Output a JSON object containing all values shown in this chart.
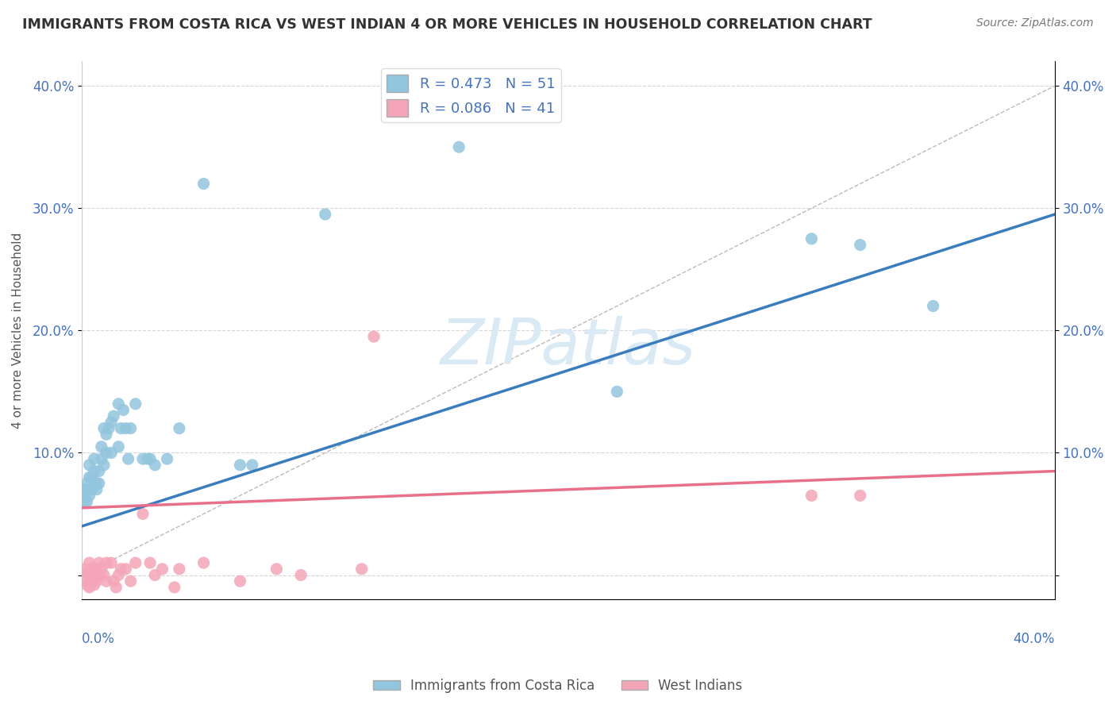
{
  "title": "IMMIGRANTS FROM COSTA RICA VS WEST INDIAN 4 OR MORE VEHICLES IN HOUSEHOLD CORRELATION CHART",
  "source": "Source: ZipAtlas.com",
  "ylabel": "4 or more Vehicles in Household",
  "xlim": [
    0,
    0.4
  ],
  "ylim": [
    -0.02,
    0.42
  ],
  "ytick_values": [
    0.0,
    0.1,
    0.2,
    0.3,
    0.4
  ],
  "ytick_labels_left": [
    "",
    "10.0%",
    "20.0%",
    "30.0%",
    "40.0%"
  ],
  "ytick_labels_right": [
    "",
    "10.0%",
    "20.0%",
    "30.0%",
    "40.0%"
  ],
  "blue_R": 0.473,
  "blue_N": 51,
  "pink_R": 0.086,
  "pink_N": 41,
  "blue_color": "#92c5de",
  "pink_color": "#f4a6b8",
  "blue_line_color": "#3a7dbf",
  "pink_line_color": "#e8708a",
  "legend_blue_label": "Immigrants from Costa Rica",
  "legend_pink_label": "West Indians",
  "blue_scatter_x": [
    0.001,
    0.001,
    0.001,
    0.002,
    0.002,
    0.002,
    0.003,
    0.003,
    0.003,
    0.004,
    0.004,
    0.005,
    0.005,
    0.005,
    0.006,
    0.006,
    0.007,
    0.007,
    0.008,
    0.008,
    0.009,
    0.009,
    0.01,
    0.01,
    0.011,
    0.012,
    0.012,
    0.013,
    0.015,
    0.015,
    0.016,
    0.017,
    0.018,
    0.019,
    0.02,
    0.022,
    0.025,
    0.027,
    0.028,
    0.03,
    0.035,
    0.04,
    0.05,
    0.065,
    0.07,
    0.1,
    0.155,
    0.22,
    0.3,
    0.32,
    0.35
  ],
  "blue_scatter_y": [
    0.06,
    0.065,
    0.07,
    0.06,
    0.07,
    0.075,
    0.065,
    0.08,
    0.09,
    0.07,
    0.08,
    0.075,
    0.085,
    0.095,
    0.07,
    0.075,
    0.075,
    0.085,
    0.095,
    0.105,
    0.09,
    0.12,
    0.1,
    0.115,
    0.12,
    0.1,
    0.125,
    0.13,
    0.14,
    0.105,
    0.12,
    0.135,
    0.12,
    0.095,
    0.12,
    0.14,
    0.095,
    0.095,
    0.095,
    0.09,
    0.095,
    0.12,
    0.32,
    0.09,
    0.09,
    0.295,
    0.35,
    0.15,
    0.275,
    0.27,
    0.22
  ],
  "pink_scatter_x": [
    0.001,
    0.001,
    0.002,
    0.002,
    0.003,
    0.003,
    0.003,
    0.004,
    0.004,
    0.005,
    0.005,
    0.006,
    0.006,
    0.007,
    0.007,
    0.008,
    0.009,
    0.01,
    0.01,
    0.012,
    0.013,
    0.014,
    0.015,
    0.016,
    0.018,
    0.02,
    0.022,
    0.025,
    0.028,
    0.03,
    0.033,
    0.038,
    0.04,
    0.05,
    0.065,
    0.08,
    0.09,
    0.115,
    0.12,
    0.3,
    0.32
  ],
  "pink_scatter_y": [
    -0.005,
    0.005,
    -0.008,
    0.002,
    -0.01,
    0.0,
    0.01,
    -0.005,
    0.005,
    -0.008,
    0.005,
    -0.005,
    0.005,
    0.0,
    0.01,
    0.005,
    0.0,
    -0.005,
    0.01,
    0.01,
    -0.005,
    -0.01,
    0.0,
    0.005,
    0.005,
    -0.005,
    0.01,
    0.05,
    0.01,
    0.0,
    0.005,
    -0.01,
    0.005,
    0.01,
    -0.005,
    0.005,
    0.0,
    0.005,
    0.195,
    0.065,
    0.065
  ],
  "background_color": "#ffffff",
  "grid_color": "#cccccc",
  "title_color": "#333333",
  "axis_color": "#4472c4",
  "watermark_color": "#daeaf5"
}
